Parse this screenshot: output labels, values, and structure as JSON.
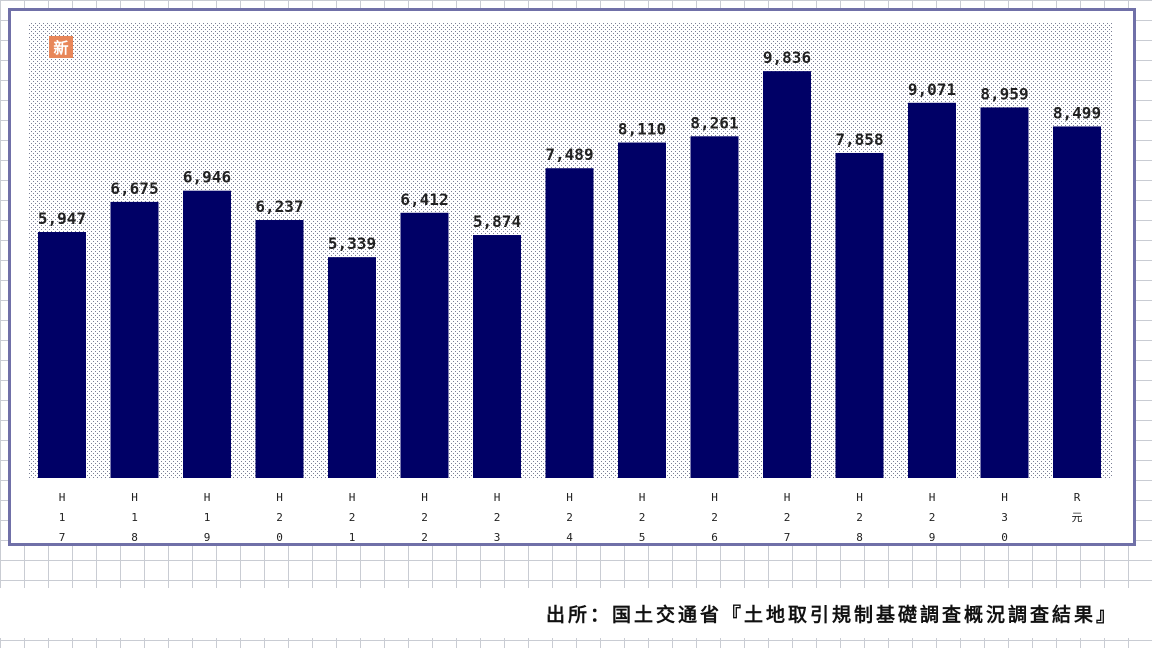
{
  "chart_data": {
    "type": "bar",
    "title": "",
    "xlabel": "",
    "ylabel": "",
    "badge": "新",
    "categories": [
      "H17",
      "H18",
      "H19",
      "H20",
      "H21",
      "H22",
      "H23",
      "H24",
      "H25",
      "H26",
      "H27",
      "H28",
      "H29",
      "H30",
      "R元"
    ],
    "category_ticks": [
      [
        "H",
        "1",
        "7"
      ],
      [
        "H",
        "1",
        "8"
      ],
      [
        "H",
        "1",
        "9"
      ],
      [
        "H",
        "2",
        "0"
      ],
      [
        "H",
        "2",
        "1"
      ],
      [
        "H",
        "2",
        "2"
      ],
      [
        "H",
        "2",
        "3"
      ],
      [
        "H",
        "2",
        "4"
      ],
      [
        "H",
        "2",
        "5"
      ],
      [
        "H",
        "2",
        "6"
      ],
      [
        "H",
        "2",
        "7"
      ],
      [
        "H",
        "2",
        "8"
      ],
      [
        "H",
        "2",
        "9"
      ],
      [
        "H",
        "3",
        "0"
      ],
      [
        "R",
        "元"
      ]
    ],
    "values": [
      5947,
      6675,
      6946,
      6237,
      5339,
      6412,
      5874,
      7489,
      8110,
      8261,
      9836,
      7858,
      9071,
      8959,
      8499
    ],
    "value_labels": [
      "5,947",
      "6,675",
      "6,946",
      "6,237",
      "5,339",
      "6,412",
      "5,874",
      "7,489",
      "8,110",
      "8,261",
      "9,836",
      "7,858",
      "9,071",
      "8,959",
      "8,499"
    ],
    "ylim": [
      0,
      11000
    ],
    "grid": false,
    "colors": {
      "bar": "#000066",
      "plot_dots": "#7a7f95",
      "badge": "#e8875a"
    }
  },
  "source": "出所：国土交通省『土地取引規制基礎調査概況調査結果』"
}
